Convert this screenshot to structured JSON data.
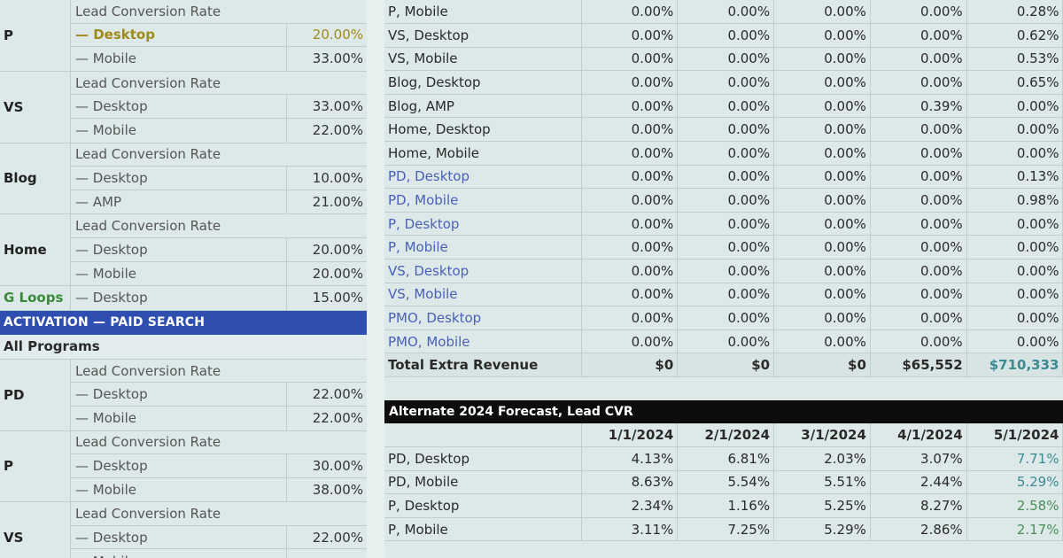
{
  "left": {
    "groups_top": [
      {
        "name": "P",
        "rows": [
          {
            "label": "Lead Conversion Rate",
            "value": "",
            "type": "hdr"
          },
          {
            "label": "— Desktop",
            "value": "20.00%",
            "type": "hl"
          },
          {
            "label": "— Mobile",
            "value": "33.00%",
            "type": ""
          }
        ]
      },
      {
        "name": "VS",
        "rows": [
          {
            "label": "Lead Conversion Rate",
            "value": "",
            "type": "hdr"
          },
          {
            "label": "— Desktop",
            "value": "33.00%",
            "type": ""
          },
          {
            "label": "— Mobile",
            "value": "22.00%",
            "type": ""
          }
        ]
      },
      {
        "name": "Blog",
        "rows": [
          {
            "label": "Lead Conversion Rate",
            "value": "",
            "type": "hdr"
          },
          {
            "label": "— Desktop",
            "value": "10.00%",
            "type": ""
          },
          {
            "label": "— AMP",
            "value": "21.00%",
            "type": ""
          }
        ]
      },
      {
        "name": "Home",
        "rows": [
          {
            "label": "Lead Conversion Rate",
            "value": "",
            "type": "hdr"
          },
          {
            "label": "— Desktop",
            "value": "20.00%",
            "type": ""
          },
          {
            "label": "— Mobile",
            "value": "20.00%",
            "type": ""
          }
        ]
      },
      {
        "name": "G Loops",
        "green": true,
        "rows": [
          {
            "label": "— Desktop",
            "value": "15.00%",
            "type": ""
          }
        ]
      }
    ],
    "section_title": "ACTIVATION — PAID SEARCH",
    "all_programs": "All Programs",
    "groups_bottom": [
      {
        "name": "PD",
        "rows": [
          {
            "label": "Lead Conversion Rate",
            "value": "",
            "type": "hdr"
          },
          {
            "label": "— Desktop",
            "value": "22.00%",
            "type": ""
          },
          {
            "label": "— Mobile",
            "value": "22.00%",
            "type": ""
          }
        ]
      },
      {
        "name": "P",
        "rows": [
          {
            "label": "Lead Conversion Rate",
            "value": "",
            "type": "hdr"
          },
          {
            "label": "— Desktop",
            "value": "30.00%",
            "type": ""
          },
          {
            "label": "— Mobile",
            "value": "38.00%",
            "type": ""
          }
        ]
      },
      {
        "name": "VS",
        "rows": [
          {
            "label": "Lead Conversion Rate",
            "value": "",
            "type": "hdr"
          },
          {
            "label": "— Desktop",
            "value": "22.00%",
            "type": ""
          },
          {
            "label": "— Mobile",
            "value": "",
            "type": ""
          }
        ]
      }
    ]
  },
  "revenue_table": {
    "rows": [
      {
        "name": "P, Mobile",
        "link": false,
        "values": [
          "0.00%",
          "0.00%",
          "0.00%",
          "0.00%",
          "0.28%"
        ]
      },
      {
        "name": "VS, Desktop",
        "link": false,
        "values": [
          "0.00%",
          "0.00%",
          "0.00%",
          "0.00%",
          "0.62%"
        ]
      },
      {
        "name": "VS, Mobile",
        "link": false,
        "values": [
          "0.00%",
          "0.00%",
          "0.00%",
          "0.00%",
          "0.53%"
        ]
      },
      {
        "name": "Blog, Desktop",
        "link": false,
        "values": [
          "0.00%",
          "0.00%",
          "0.00%",
          "0.00%",
          "0.65%"
        ]
      },
      {
        "name": "Blog, AMP",
        "link": false,
        "values": [
          "0.00%",
          "0.00%",
          "0.00%",
          "0.39%",
          "0.00%"
        ]
      },
      {
        "name": "Home, Desktop",
        "link": false,
        "values": [
          "0.00%",
          "0.00%",
          "0.00%",
          "0.00%",
          "0.00%"
        ]
      },
      {
        "name": "Home, Mobile",
        "link": false,
        "values": [
          "0.00%",
          "0.00%",
          "0.00%",
          "0.00%",
          "0.00%"
        ]
      },
      {
        "name": "PD, Desktop",
        "link": true,
        "values": [
          "0.00%",
          "0.00%",
          "0.00%",
          "0.00%",
          "0.13%"
        ]
      },
      {
        "name": "PD, Mobile",
        "link": true,
        "values": [
          "0.00%",
          "0.00%",
          "0.00%",
          "0.00%",
          "0.98%"
        ]
      },
      {
        "name": "P, Desktop",
        "link": true,
        "values": [
          "0.00%",
          "0.00%",
          "0.00%",
          "0.00%",
          "0.00%"
        ]
      },
      {
        "name": "P, Mobile",
        "link": true,
        "values": [
          "0.00%",
          "0.00%",
          "0.00%",
          "0.00%",
          "0.00%"
        ]
      },
      {
        "name": "VS, Desktop",
        "link": true,
        "values": [
          "0.00%",
          "0.00%",
          "0.00%",
          "0.00%",
          "0.00%"
        ]
      },
      {
        "name": "VS, Mobile",
        "link": true,
        "values": [
          "0.00%",
          "0.00%",
          "0.00%",
          "0.00%",
          "0.00%"
        ]
      },
      {
        "name": "PMO, Desktop",
        "link": true,
        "values": [
          "0.00%",
          "0.00%",
          "0.00%",
          "0.00%",
          "0.00%"
        ]
      },
      {
        "name": "PMO, Mobile",
        "link": true,
        "values": [
          "0.00%",
          "0.00%",
          "0.00%",
          "0.00%",
          "0.00%"
        ]
      }
    ],
    "total": {
      "name": "Total Extra Revenue",
      "values": [
        "$0",
        "$0",
        "$0",
        "$65,552",
        "$710,333"
      ]
    }
  },
  "forecast_table": {
    "title": "Alternate 2024 Forecast, Lead CVR",
    "columns": [
      "1/1/2024",
      "2/1/2024",
      "3/1/2024",
      "4/1/2024",
      "5/1/2024"
    ],
    "rows": [
      {
        "name": "PD, Desktop",
        "values": [
          "4.13%",
          "6.81%",
          "2.03%",
          "3.07%",
          "7.71%"
        ],
        "last_color": "teal"
      },
      {
        "name": "PD, Mobile",
        "values": [
          "8.63%",
          "5.54%",
          "5.51%",
          "2.44%",
          "5.29%"
        ],
        "last_color": "teal"
      },
      {
        "name": "P, Desktop",
        "values": [
          "2.34%",
          "1.16%",
          "5.25%",
          "8.27%",
          "2.58%"
        ],
        "last_color": "green"
      },
      {
        "name": "P, Mobile",
        "values": [
          "3.11%",
          "7.25%",
          "5.29%",
          "2.86%",
          "2.17%"
        ],
        "last_color": "green"
      }
    ]
  },
  "colors": {
    "section_bar": "#2f4fb0",
    "forecast_header": "#0d0d0d",
    "link_text": "#4a5fb8",
    "highlight_text": "#a08a1a",
    "background": "#dde9e8"
  }
}
